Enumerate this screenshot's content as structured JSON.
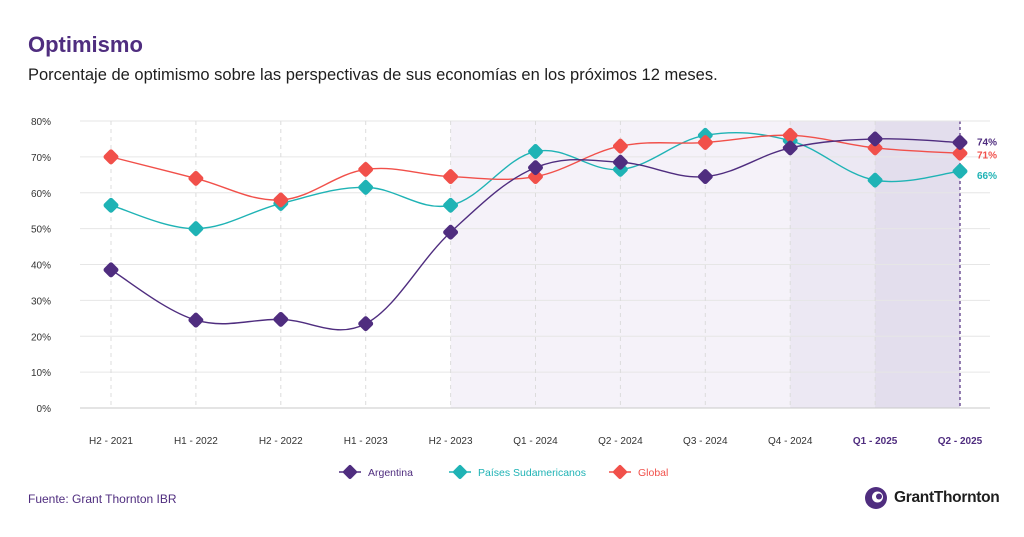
{
  "title": "Optimismo",
  "subtitle": "Porcentaje de optimismo sobre las perspectivas de sus economías en los próximos 12 meses.",
  "source": "Fuente: Grant Thornton IBR",
  "logo_text": "GrantThornton",
  "colors": {
    "argentina": "#4f2d7f",
    "sudamericanos": "#1fb3b5",
    "global": "#f1504a",
    "title": "#4f2d7f",
    "shade_light": "#f5f2f9",
    "shade_dark": "#e9e5f1"
  },
  "chart_data": {
    "type": "line",
    "categories": [
      "H2 - 2021",
      "H1 - 2022",
      "H2 - 2022",
      "H1 - 2023",
      "H2 - 2023",
      "Q1 - 2024",
      "Q2 - 2024",
      "Q3 - 2024",
      "Q4 - 2024",
      "Q1 - 2025",
      "Q2 - 2025"
    ],
    "bold_categories": [
      "Q1 - 2025",
      "Q2 - 2025"
    ],
    "ylim": [
      0,
      80
    ],
    "yticks": [
      "0%",
      "10%",
      "20%",
      "30%",
      "40%",
      "50%",
      "60%",
      "70%",
      "80%"
    ],
    "grid": true,
    "legend_position": "bottom-center",
    "shaded_regions": [
      {
        "from": "H2 - 2023",
        "to": "Q2 - 2025",
        "shade": "light"
      },
      {
        "from": "Q4 - 2024",
        "to": "Q2 - 2025",
        "shade": "medium"
      },
      {
        "from": "Q1 - 2025",
        "to": "Q2 - 2025",
        "shade": "dark"
      }
    ],
    "series": [
      {
        "name": "Argentina",
        "key": "argentina",
        "values": [
          38.5,
          24.5,
          24.7,
          23.5,
          49,
          67,
          68.5,
          64.5,
          72.5,
          75,
          74
        ],
        "end_label": "74%"
      },
      {
        "name": "Países Sudamericanos",
        "key": "sudamericanos",
        "values": [
          56.5,
          50,
          57,
          61.5,
          56.5,
          71.5,
          66.5,
          76,
          74.5,
          63.5,
          66
        ],
        "end_label": "66%"
      },
      {
        "name": "Global",
        "key": "global",
        "values": [
          70,
          64,
          58,
          66.5,
          64.5,
          64.5,
          73,
          74,
          76,
          72.5,
          71
        ],
        "end_label": "71%"
      }
    ]
  }
}
